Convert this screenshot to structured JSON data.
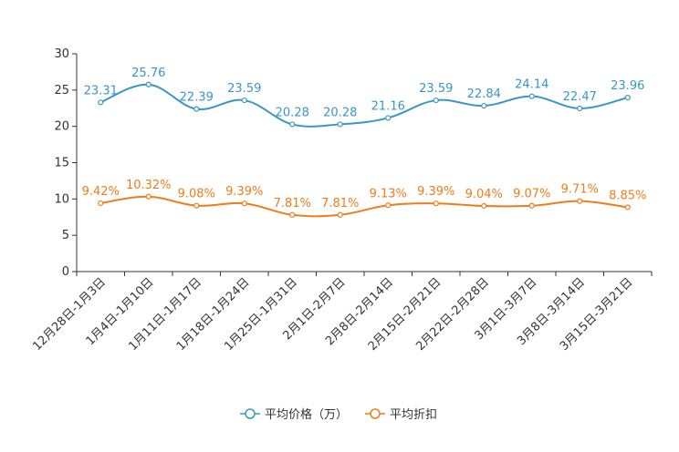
{
  "chart_data": {
    "type": "line",
    "title": "",
    "xlabel": "",
    "ylabel": "",
    "ylim": [
      0,
      30
    ],
    "yticks": [
      "0",
      "5",
      "10",
      "15",
      "20",
      "25",
      "30"
    ],
    "categories": [
      "12月28日-1月3日",
      "1月4日-1月10日",
      "1月11日-1月17日",
      "1月18日-1月24日",
      "1月25日-1月31日",
      "2月1日-2月7日",
      "2月8日-2月14日",
      "2月15日-2月21日",
      "2月22日-2月28日",
      "3月1日-3月7日",
      "3月8日-3月14日",
      "3月15日-3月21日"
    ],
    "series": [
      {
        "name": "平均价格（万）",
        "color": "#3a96c9",
        "values": [
          23.31,
          25.76,
          22.39,
          23.59,
          20.28,
          20.28,
          21.16,
          23.59,
          22.84,
          24.14,
          22.47,
          23.96
        ],
        "labels": [
          "23.31",
          "25.76",
          "22.39",
          "23.59",
          "20.28",
          "20.28",
          "21.16",
          "23.59",
          "22.84",
          "24.14",
          "22.47",
          "23.96"
        ]
      },
      {
        "name": "平均折扣",
        "color": "#f07c1a",
        "values": [
          9.42,
          10.32,
          9.08,
          9.39,
          7.81,
          7.81,
          9.13,
          9.39,
          9.04,
          9.07,
          9.71,
          8.85
        ],
        "labels": [
          "9.42%",
          "10.32%",
          "9.08%",
          "9.39%",
          "7.81%",
          "7.81%",
          "9.13%",
          "9.39%",
          "9.04%",
          "9.07%",
          "9.71%",
          "8.85%"
        ]
      }
    ],
    "legend_position": "bottom-center"
  }
}
